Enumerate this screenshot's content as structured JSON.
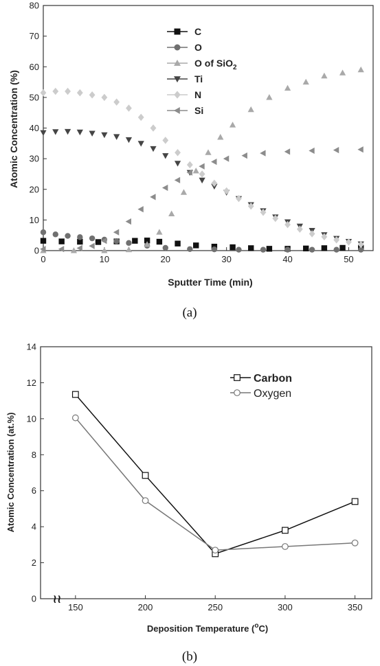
{
  "chart_data": [
    {
      "type": "scatter",
      "caption": "(a)",
      "xlabel": "Sputter Time (min)",
      "ylabel": "Atomic Concentration (%)",
      "xlim": [
        0,
        54
      ],
      "ylim": [
        0,
        80
      ],
      "xticks": [
        0,
        10,
        20,
        30,
        40,
        50
      ],
      "yticks": [
        0,
        10,
        20,
        30,
        40,
        50,
        60,
        70,
        80
      ],
      "legend_position": "top-left",
      "series": [
        {
          "name": "C",
          "name_sub": "",
          "marker": "square",
          "color": "#111111",
          "x": [
            0,
            3,
            6,
            9,
            12,
            15,
            17,
            19,
            22,
            25,
            28,
            31,
            34,
            37,
            40,
            43,
            46,
            49,
            52
          ],
          "y": [
            3.2,
            3,
            2.9,
            2.8,
            3,
            3.2,
            3.3,
            2.9,
            2.3,
            1.7,
            1.3,
            1.1,
            0.8,
            0.6,
            0.6,
            0.7,
            0.8,
            0.9,
            0.9
          ]
        },
        {
          "name": "O",
          "name_sub": "",
          "marker": "circle",
          "color": "#707070",
          "x": [
            0,
            2,
            4,
            6,
            8,
            10,
            12,
            14,
            17,
            20,
            24,
            28,
            32,
            36,
            40,
            44,
            48,
            52
          ],
          "y": [
            6,
            5.3,
            4.8,
            4.4,
            4,
            3.6,
            3.1,
            2.5,
            1.6,
            0.9,
            0.5,
            0.4,
            0.3,
            0.3,
            0.3,
            0.3,
            0.3,
            0.3
          ]
        },
        {
          "name": "O of SiO",
          "name_sub": "2",
          "marker": "triangle-up",
          "color": "#a9a9a9",
          "x": [
            0,
            5,
            10,
            14,
            17,
            19,
            21,
            23,
            25,
            27,
            29,
            31,
            34,
            37,
            40,
            43,
            46,
            49,
            52
          ],
          "y": [
            0,
            0,
            0,
            0.3,
            2,
            6,
            12,
            19,
            26,
            32,
            37,
            41,
            46,
            50,
            53,
            55,
            57,
            58,
            59
          ]
        },
        {
          "name": "Ti",
          "name_sub": "",
          "marker": "triangle-down",
          "color": "#454545",
          "x": [
            0,
            2,
            4,
            6,
            8,
            10,
            12,
            14,
            16,
            18,
            20,
            22,
            24,
            26,
            28,
            30,
            32,
            34,
            36,
            38,
            40,
            42,
            44,
            46,
            48,
            50,
            52
          ],
          "y": [
            38.5,
            38.8,
            38.9,
            38.7,
            38.3,
            37.8,
            37.2,
            36.2,
            35,
            33.3,
            31,
            28.5,
            25.5,
            23,
            21,
            19,
            17,
            15,
            13,
            11,
            9.4,
            8,
            6.6,
            5.2,
            4,
            3,
            2.2
          ]
        },
        {
          "name": "N",
          "name_sub": "",
          "marker": "diamond",
          "color": "#cccccc",
          "x": [
            0,
            2,
            4,
            6,
            8,
            10,
            12,
            14,
            16,
            18,
            20,
            22,
            24,
            26,
            28,
            30,
            32,
            34,
            36,
            38,
            40,
            42,
            44,
            46,
            48,
            50,
            52
          ],
          "y": [
            51.5,
            52,
            52,
            51.5,
            50.8,
            50,
            48.5,
            46.5,
            43.5,
            40,
            36,
            32,
            28,
            25,
            22,
            19.5,
            17,
            14.5,
            12.5,
            10.5,
            8.5,
            7,
            5.5,
            4.5,
            3.5,
            2.8,
            2
          ]
        },
        {
          "name": "Si",
          "name_sub": "",
          "marker": "triangle-left",
          "color": "#8c8c8c",
          "x": [
            0,
            3,
            6,
            8,
            10,
            12,
            14,
            16,
            18,
            20,
            22,
            24,
            26,
            28,
            30,
            33,
            36,
            40,
            44,
            48,
            52
          ],
          "y": [
            0.5,
            0.5,
            0.8,
            1.5,
            3.2,
            6,
            9.5,
            13.5,
            17.5,
            20.5,
            23,
            25.5,
            27.5,
            29,
            30,
            31,
            31.8,
            32.3,
            32.6,
            32.8,
            33
          ]
        }
      ]
    },
    {
      "type": "line",
      "caption": "(b)",
      "xlabel": "Deposition Temperature (",
      "xlabel_sup": "o",
      "xlabel_tail": "C)",
      "ylabel": "Atomic Concentration (at.%)",
      "xlim": [
        125,
        362
      ],
      "ylim": [
        0,
        14
      ],
      "xticks": [
        150,
        200,
        250,
        300,
        350
      ],
      "yticks": [
        0,
        2,
        4,
        6,
        8,
        10,
        12,
        14
      ],
      "axis_break_symbol": "≀≀",
      "legend_position": "top-right",
      "series": [
        {
          "name": "Carbon",
          "marker": "square-open",
          "color": "#111111",
          "bold": true,
          "x": [
            150,
            200,
            250,
            300,
            350
          ],
          "y": [
            11.35,
            6.85,
            2.5,
            3.8,
            5.4
          ]
        },
        {
          "name": "Oxygen",
          "marker": "circle-open",
          "color": "#777777",
          "bold": false,
          "x": [
            150,
            200,
            250,
            300,
            350
          ],
          "y": [
            10.05,
            5.45,
            2.7,
            2.9,
            3.1
          ]
        }
      ]
    }
  ]
}
